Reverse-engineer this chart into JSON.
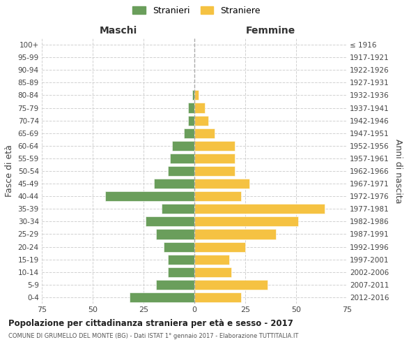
{
  "age_groups": [
    "100+",
    "95-99",
    "90-94",
    "85-89",
    "80-84",
    "75-79",
    "70-74",
    "65-69",
    "60-64",
    "55-59",
    "50-54",
    "45-49",
    "40-44",
    "35-39",
    "30-34",
    "25-29",
    "20-24",
    "15-19",
    "10-14",
    "5-9",
    "0-4"
  ],
  "birth_years": [
    "≤ 1916",
    "1917-1921",
    "1922-1926",
    "1927-1931",
    "1932-1936",
    "1937-1941",
    "1942-1946",
    "1947-1951",
    "1952-1956",
    "1957-1961",
    "1962-1966",
    "1967-1971",
    "1972-1976",
    "1977-1981",
    "1982-1986",
    "1987-1991",
    "1992-1996",
    "1997-2001",
    "2002-2006",
    "2007-2011",
    "2012-2016"
  ],
  "maschi": [
    0,
    0,
    0,
    0,
    1,
    3,
    3,
    5,
    11,
    12,
    13,
    20,
    44,
    16,
    24,
    19,
    15,
    13,
    13,
    19,
    32
  ],
  "femmine": [
    0,
    0,
    0,
    0,
    2,
    5,
    7,
    10,
    20,
    20,
    20,
    27,
    23,
    64,
    51,
    40,
    25,
    17,
    18,
    36,
    23
  ],
  "color_maschi": "#6a9e5b",
  "color_femmine": "#f5c242",
  "title": "Popolazione per cittadinanza straniera per età e sesso - 2017",
  "subtitle": "COMUNE DI GRUMELLO DEL MONTE (BG) - Dati ISTAT 1° gennaio 2017 - Elaborazione TUTTITALIA.IT",
  "xlabel_left": "Maschi",
  "xlabel_right": "Femmine",
  "ylabel_left": "Fasce di età",
  "ylabel_right": "Anni di nascita",
  "legend_maschi": "Stranieri",
  "legend_femmine": "Straniere",
  "xlim": 75,
  "background_color": "#ffffff",
  "grid_color": "#cccccc"
}
